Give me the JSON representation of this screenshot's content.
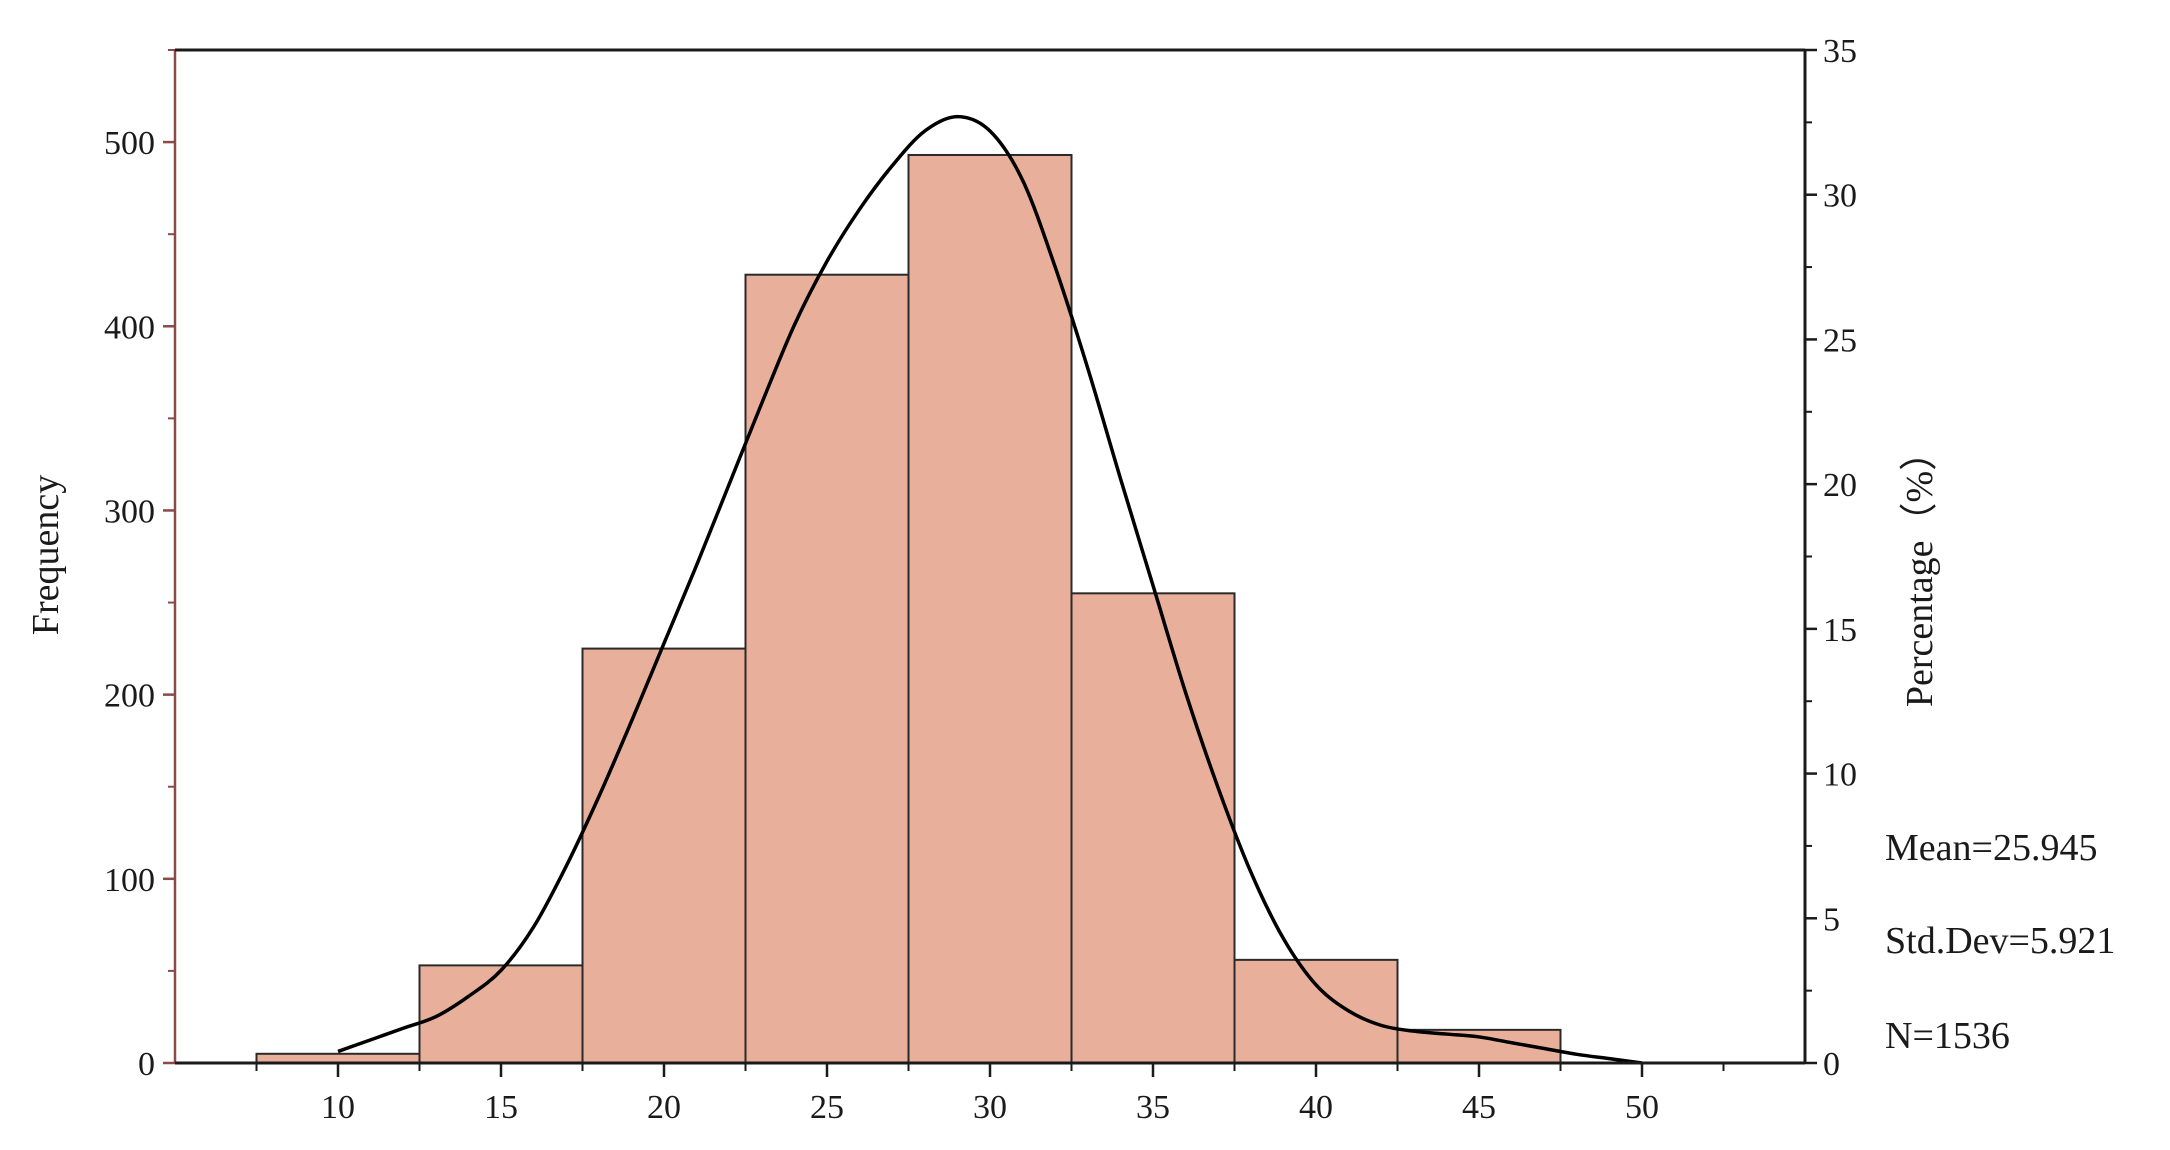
{
  "chart_data": {
    "type": "bar",
    "title": "",
    "xlabel": "",
    "ylabel": "Frequency",
    "y2label": "Percentage（%）",
    "xlim": [
      5,
      55
    ],
    "ylim": [
      0,
      550
    ],
    "y2lim": [
      0,
      35
    ],
    "x_ticks": [
      "10",
      "15",
      "20",
      "25",
      "30",
      "35",
      "40",
      "45",
      "50"
    ],
    "y_ticks": [
      "0",
      "100",
      "200",
      "300",
      "400",
      "500"
    ],
    "y2_ticks": [
      "0",
      "5",
      "10",
      "15",
      "20",
      "25",
      "30",
      "35"
    ],
    "bins": [
      {
        "x0": 7.5,
        "x1": 12.5,
        "value": 5
      },
      {
        "x0": 12.5,
        "x1": 17.5,
        "value": 53
      },
      {
        "x0": 17.5,
        "x1": 22.5,
        "value": 225
      },
      {
        "x0": 22.5,
        "x1": 27.5,
        "value": 428
      },
      {
        "x0": 27.5,
        "x1": 32.5,
        "value": 493
      },
      {
        "x0": 32.5,
        "x1": 37.5,
        "value": 255
      },
      {
        "x0": 37.5,
        "x1": 42.5,
        "value": 56
      },
      {
        "x0": 42.5,
        "x1": 47.5,
        "value": 18
      }
    ],
    "curve": {
      "name": "",
      "axis": "percentage",
      "x": [
        10,
        11,
        12,
        13,
        14,
        15,
        16,
        17,
        18,
        19,
        20,
        21,
        22,
        23,
        24,
        25,
        26,
        27,
        28,
        29,
        30,
        31,
        32,
        33,
        34,
        35,
        36,
        37,
        38,
        39,
        40,
        41,
        42,
        43,
        44,
        45,
        46,
        47,
        48,
        49,
        50
      ],
      "y": [
        0.4,
        0.8,
        1.2,
        1.6,
        2.3,
        3.2,
        4.7,
        6.8,
        9.2,
        11.8,
        14.5,
        17.2,
        20.0,
        22.8,
        25.5,
        27.7,
        29.5,
        31.0,
        32.2,
        32.7,
        32.2,
        30.5,
        27.5,
        24.0,
        20.2,
        16.5,
        12.8,
        9.5,
        6.6,
        4.3,
        2.7,
        1.8,
        1.3,
        1.1,
        1.0,
        0.9,
        0.7,
        0.5,
        0.3,
        0.15,
        0.0
      ]
    },
    "bar_color": "#e8b09b",
    "bar_edge": "#2a2a2a",
    "left_axis_color": "#8b4a4a",
    "curve_color": "#000000",
    "grid": false,
    "stats": {
      "mean": "Mean=25.945",
      "std": "Std.Dev=5.921",
      "n": "N=1536"
    }
  }
}
